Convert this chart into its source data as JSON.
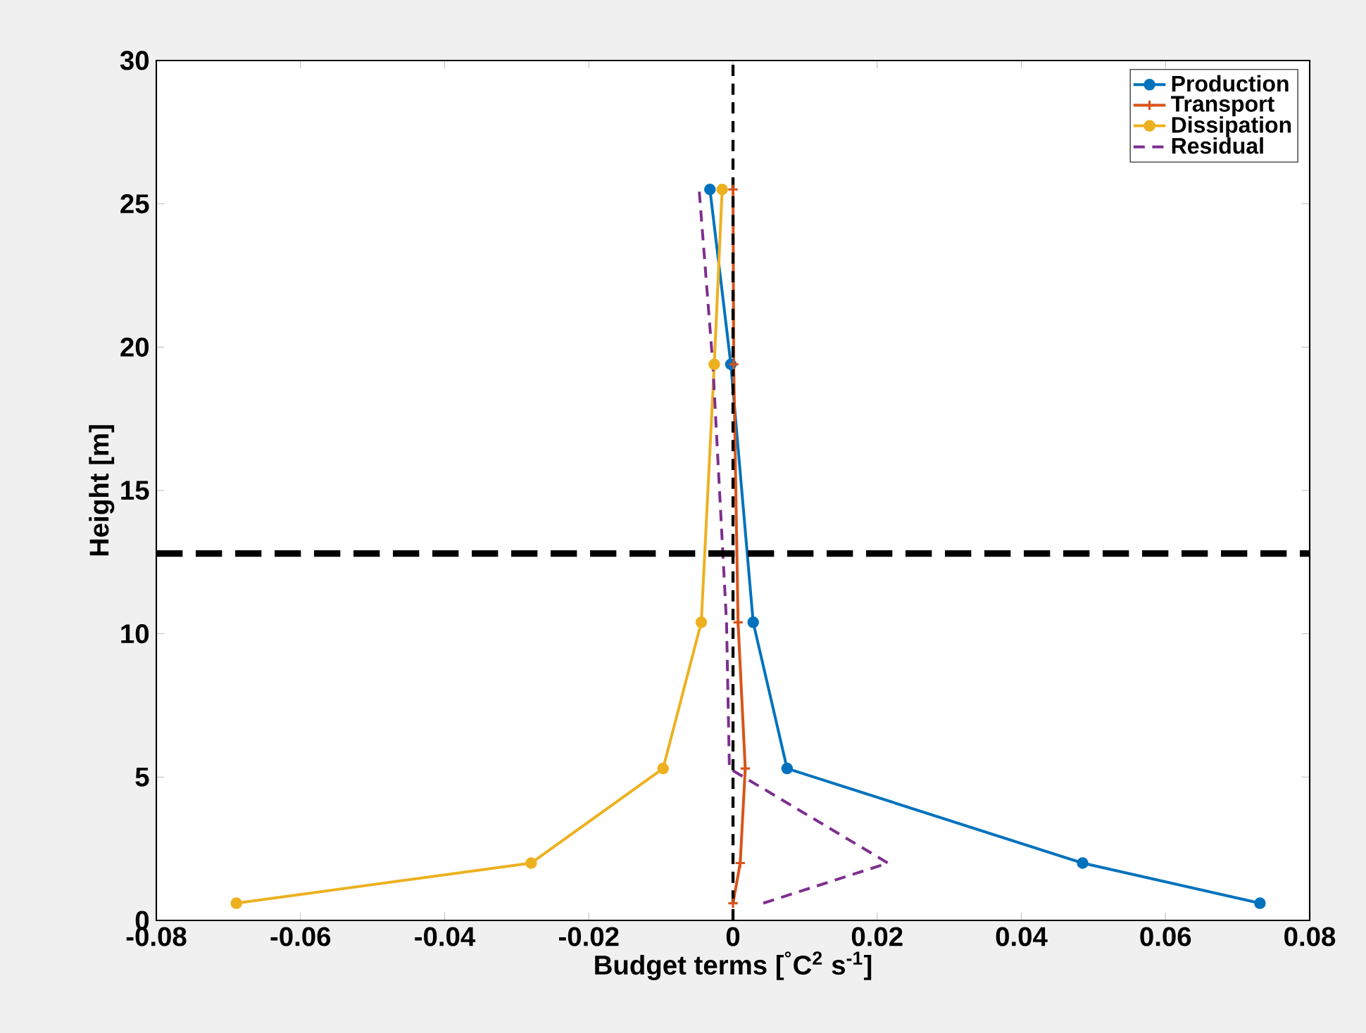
{
  "chart_data": {
    "type": "line",
    "xlabel": "Budget terms [$^{°}$C$^{2}$ s$^{-1}$]",
    "ylabel": "Height [m]",
    "xlim": [
      -0.08,
      0.08
    ],
    "xticks": [
      -0.08,
      -0.06,
      -0.04,
      -0.02,
      0,
      0.02,
      0.04,
      0.06,
      0.08
    ],
    "ylim": [
      0,
      30
    ],
    "yticks": [
      0,
      5,
      10,
      15,
      20,
      25,
      30
    ],
    "legend": "top right",
    "series": [
      {
        "name": "Production",
        "color": "#0072bd",
        "marker": "circle",
        "line_style": "solid",
        "x": [
          0.0731,
          0.0485,
          0.0075,
          0.0028,
          -0.0003,
          -0.0032
        ],
        "values": [
          0.6,
          2.0,
          5.3,
          10.4,
          19.4,
          25.5
        ]
      },
      {
        "name": "Transport",
        "color": "#d95319",
        "marker": "cross",
        "line_style": "solid",
        "x": [
          0.0,
          0.001,
          0.0017,
          0.0007,
          0.0001,
          0.0
        ],
        "values": [
          0.6,
          2.0,
          5.3,
          10.4,
          19.4,
          25.5
        ]
      },
      {
        "name": "Dissipation",
        "color": "#edb120",
        "marker": "circle",
        "line_style": "solid",
        "x": [
          -0.0689,
          -0.028,
          -0.0097,
          -0.0044,
          -0.0026,
          -0.0015
        ],
        "values": [
          0.6,
          2.0,
          5.3,
          10.4,
          19.4,
          25.5
        ]
      },
      {
        "name": "Residual",
        "color": "#7e2f8e",
        "marker": "none",
        "line_style": "dashed",
        "x": [
          0.0042,
          0.0215,
          -0.0005,
          -0.0009,
          -0.0028,
          -0.0047
        ],
        "values": [
          0.6,
          2.0,
          5.3,
          10.4,
          19.4,
          25.5
        ]
      }
    ],
    "ref_lines": [
      {
        "axis": "x",
        "value": 0,
        "color": "#000000",
        "line_style": "dashed"
      },
      {
        "axis": "y",
        "value": 12.8,
        "color": "#000000",
        "line_style": "dashed"
      }
    ]
  }
}
